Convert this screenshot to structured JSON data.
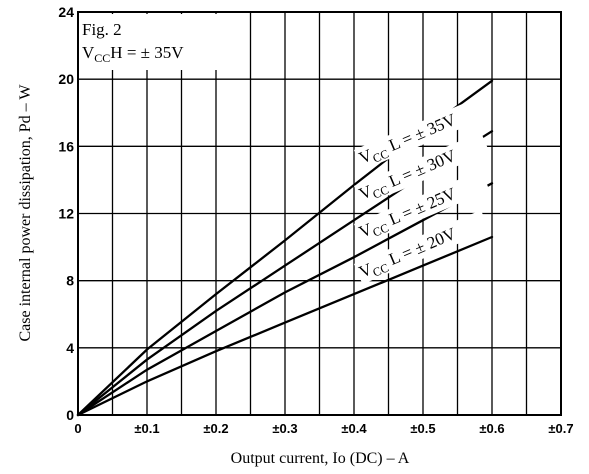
{
  "figure": {
    "fig_label": "Fig. 2",
    "vcch_prefix": "V",
    "vcch_sub": "CC",
    "vcch_suffix": "H = ± 35V"
  },
  "chart_data": {
    "type": "line",
    "xlabel": "Output current, Io (DC) – A",
    "ylabel": "Case internal power dissipation, Pd – W",
    "xlim": [
      0,
      0.7
    ],
    "ylim": [
      0,
      24
    ],
    "x_ticks": [
      {
        "value": 0,
        "label": "0"
      },
      {
        "value": 0.1,
        "label": "±0.1"
      },
      {
        "value": 0.2,
        "label": "±0.2"
      },
      {
        "value": 0.3,
        "label": "±0.3"
      },
      {
        "value": 0.4,
        "label": "±0.4"
      },
      {
        "value": 0.5,
        "label": "±0.5"
      },
      {
        "value": 0.6,
        "label": "±0.6"
      },
      {
        "value": 0.7,
        "label": "±0.7"
      }
    ],
    "y_ticks": [
      {
        "value": 0,
        "label": "0"
      },
      {
        "value": 4,
        "label": "4"
      },
      {
        "value": 8,
        "label": "8"
      },
      {
        "value": 12,
        "label": "12"
      },
      {
        "value": 16,
        "label": "16"
      },
      {
        "value": 20,
        "label": "20"
      },
      {
        "value": 24,
        "label": "24"
      }
    ],
    "x_minor_step": 0.05,
    "grid": true,
    "series": [
      {
        "label_prefix": "V",
        "label_sub": "CC",
        "label_suffix": " L = ± 35V",
        "x": [
          0,
          0.1,
          0.2,
          0.3,
          0.4,
          0.5,
          0.6
        ],
        "y": [
          0,
          3.9,
          7.2,
          10.4,
          13.7,
          16.9,
          19.9
        ]
      },
      {
        "label_prefix": "V",
        "label_sub": "CC",
        "label_suffix": " L = ± 30V",
        "x": [
          0,
          0.1,
          0.2,
          0.3,
          0.4,
          0.5,
          0.6
        ],
        "y": [
          0,
          3.3,
          6.2,
          8.9,
          11.6,
          14.3,
          16.9
        ]
      },
      {
        "label_prefix": "V",
        "label_sub": "CC",
        "label_suffix": " L = ± 25V",
        "x": [
          0,
          0.1,
          0.2,
          0.3,
          0.4,
          0.5,
          0.6
        ],
        "y": [
          0,
          2.7,
          5.0,
          7.3,
          9.4,
          11.6,
          13.8
        ]
      },
      {
        "label_prefix": "V",
        "label_sub": "CC",
        "label_suffix": " L = ± 20V",
        "x": [
          0,
          0.1,
          0.2,
          0.3,
          0.4,
          0.5,
          0.6
        ],
        "y": [
          0,
          2.0,
          3.8,
          5.5,
          7.2,
          8.9,
          10.6
        ]
      }
    ]
  }
}
